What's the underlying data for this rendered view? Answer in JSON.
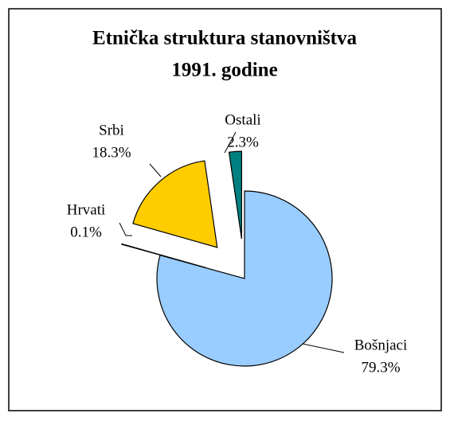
{
  "chart_data": {
    "type": "pie",
    "title": [
      "Etnička struktura stanovništva",
      "1991. godine"
    ],
    "categories": [
      "Bošnjaci",
      "Hrvati",
      "Srbi",
      "Ostali"
    ],
    "values": [
      79.3,
      0.1,
      18.3,
      2.3
    ],
    "value_labels": [
      "79.3%",
      "0.1%",
      "18.3%",
      "2.3%"
    ],
    "colors": [
      "#99ccff",
      "#ffffff",
      "#ffcc00",
      "#008080"
    ]
  }
}
